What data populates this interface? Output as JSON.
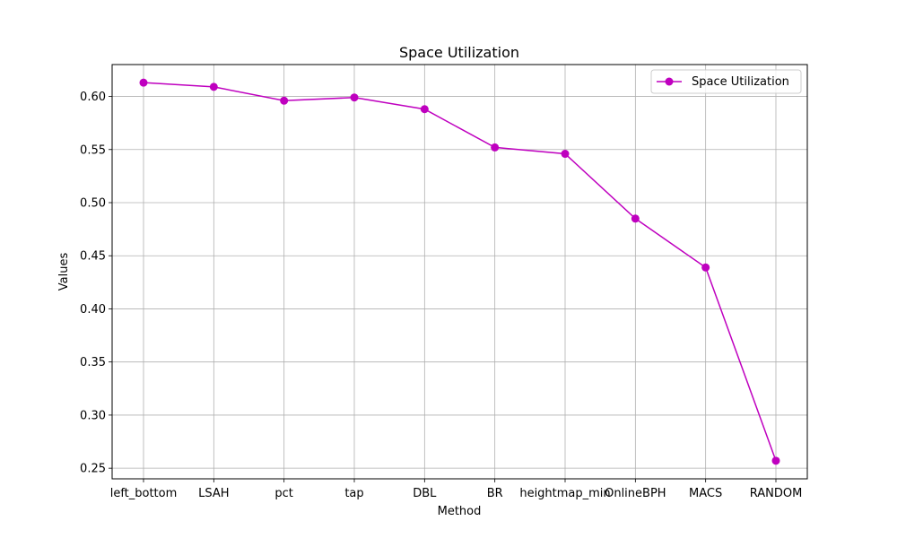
{
  "chart_data": {
    "type": "line",
    "title": "Space Utilization",
    "xlabel": "Method",
    "ylabel": "Values",
    "categories": [
      "left_bottom",
      "LSAH",
      "pct",
      "tap",
      "DBL",
      "BR",
      "heightmap_min",
      "OnlineBPH",
      "MACS",
      "RANDOM"
    ],
    "series": [
      {
        "name": "Space Utilization",
        "values": [
          0.613,
          0.609,
          0.596,
          0.599,
          0.588,
          0.552,
          0.546,
          0.485,
          0.439,
          0.257
        ],
        "color": "#bf00bf",
        "marker": "circle"
      }
    ],
    "ylim": [
      0.24,
      0.63
    ],
    "yticks": [
      0.25,
      0.3,
      0.35,
      0.4,
      0.45,
      0.5,
      0.55,
      0.6
    ],
    "ytick_labels": [
      "0.25",
      "0.30",
      "0.35",
      "0.40",
      "0.45",
      "0.50",
      "0.55",
      "0.60"
    ],
    "grid": true,
    "legend_position": "top-right"
  }
}
